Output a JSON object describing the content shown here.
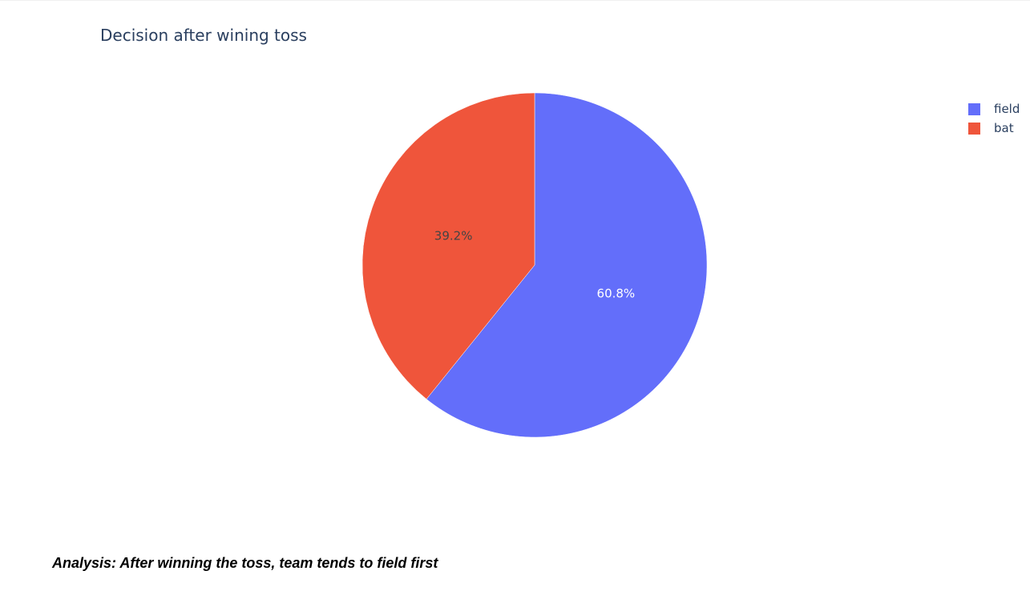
{
  "chart_data": {
    "type": "pie",
    "title": "Decision after wining toss",
    "categories": [
      "field",
      "bat"
    ],
    "values": [
      60.8,
      39.2
    ],
    "labels": [
      "60.8%",
      "39.2%"
    ],
    "colors": [
      "#636efa",
      "#ef553b"
    ],
    "label_colors": [
      "#ffffff",
      "#444444"
    ],
    "legend": {
      "placement": "top-right",
      "entries": [
        "field",
        "bat"
      ]
    }
  },
  "analysis_text": "Analysis: After winning the toss, team tends to field first"
}
